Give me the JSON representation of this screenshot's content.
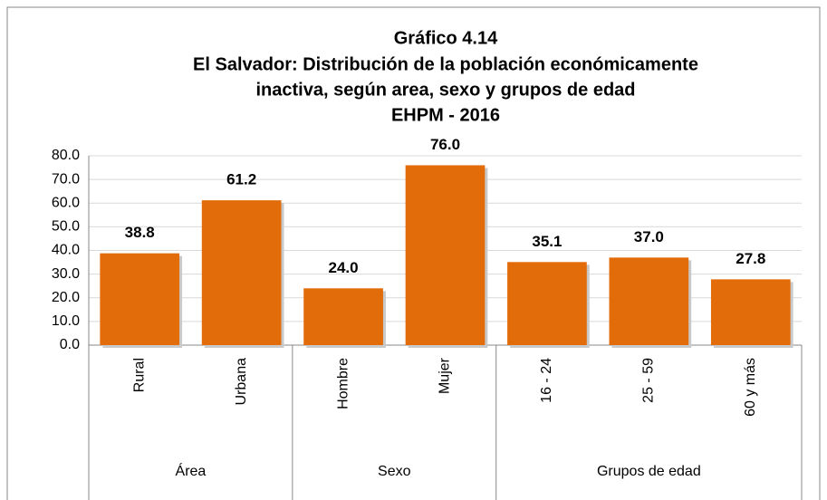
{
  "chart_data": {
    "type": "bar",
    "title": [
      "Gráfico 4.14",
      "El Salvador: Distribución de la población económicamente",
      "inactiva, según area, sexo y grupos de edad",
      "EHPM - 2016"
    ],
    "groups": [
      {
        "name": "Área",
        "categories": [
          "Rural",
          "Urbana"
        ],
        "values": [
          38.8,
          61.2
        ],
        "value_labels": [
          "38.8",
          "61.2"
        ]
      },
      {
        "name": "Sexo",
        "categories": [
          "Hombre",
          "Mujer"
        ],
        "values": [
          24.0,
          76.0
        ],
        "value_labels": [
          "24.0",
          "76.0"
        ]
      },
      {
        "name": "Grupos de edad",
        "categories": [
          "16 - 24",
          "25 - 59",
          "60 y más"
        ],
        "values": [
          35.1,
          37.0,
          27.8
        ],
        "value_labels": [
          "35.1",
          "37.0",
          "27.8"
        ]
      }
    ],
    "color": "#e36c0a",
    "ylim": [
      0,
      80
    ],
    "yticks": [
      {
        "value": 0,
        "label": "0.0"
      },
      {
        "value": 10,
        "label": "10.0"
      },
      {
        "value": 20,
        "label": "20.0"
      },
      {
        "value": 30,
        "label": "30.0"
      },
      {
        "value": 40,
        "label": "40.0"
      },
      {
        "value": 50,
        "label": "50.0"
      },
      {
        "value": 60,
        "label": "60.0"
      },
      {
        "value": 70,
        "label": "70.0"
      },
      {
        "value": 80,
        "label": "80.0"
      }
    ],
    "grid": true
  }
}
